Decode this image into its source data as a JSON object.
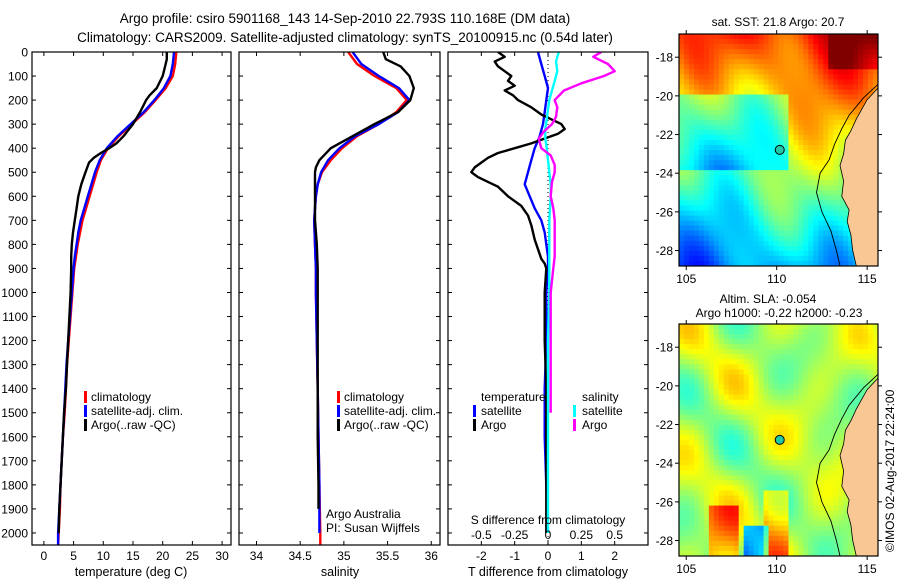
{
  "title": {
    "line1": "Argo profile: csiro 5901168_143 14-Sep-2010 22.793S 110.168E (DM data)",
    "line2": "Climatology: CARS2009. Satellite-adjusted climatology: synTS_20100915.nc (0.54d later)"
  },
  "colors": {
    "climatology": "#ff0000",
    "satellite": "#0000ff",
    "argo": "#000000",
    "sal_satellite": "#00ffff",
    "sal_argo": "#ff00ff",
    "land": "#f9c794"
  },
  "depth_axis": {
    "ticks": [
      0,
      100,
      200,
      300,
      400,
      500,
      600,
      700,
      800,
      900,
      1000,
      1100,
      1200,
      1300,
      1400,
      1500,
      1600,
      1700,
      1800,
      1900,
      2000
    ],
    "range": [
      0,
      2050
    ]
  },
  "chart_data": [
    {
      "type": "line",
      "id": "temperature",
      "xlabel": "temperature (deg C)",
      "ylabel": "",
      "xlim": [
        -2,
        31.5
      ],
      "ylim": [
        2050,
        0
      ],
      "xticks": [
        0,
        5,
        10,
        15,
        20,
        25,
        30
      ],
      "legend": [
        "climatology",
        "satellite-adj. clim.",
        "Argo(..raw -QC)"
      ],
      "legend_position": "lower-middle",
      "series": [
        {
          "name": "climatology",
          "color_key": "climatology",
          "depth": [
            0,
            50,
            100,
            150,
            200,
            250,
            300,
            350,
            400,
            450,
            500,
            550,
            600,
            650,
            700,
            750,
            800,
            850,
            900,
            1000,
            1100,
            1200,
            1300,
            1400,
            1500,
            1600,
            1700,
            1800,
            1900,
            2000,
            2050
          ],
          "values": [
            22.3,
            22.1,
            21.7,
            20.5,
            18.8,
            17.0,
            14.8,
            12.6,
            10.8,
            9.6,
            8.9,
            8.3,
            7.7,
            7.1,
            6.5,
            6.1,
            5.7,
            5.4,
            5.1,
            4.8,
            4.5,
            4.2,
            3.9,
            3.7,
            3.5,
            3.2,
            3.0,
            2.8,
            2.7,
            2.5,
            2.4
          ]
        },
        {
          "name": "satellite-adj. clim.",
          "color_key": "satellite",
          "depth": [
            0,
            50,
            100,
            150,
            200,
            250,
            300,
            350,
            400,
            450,
            500,
            550,
            600,
            650,
            700,
            750,
            800,
            850,
            900,
            1000,
            1100,
            1200,
            1300,
            1400,
            1500,
            1600,
            1700,
            1800,
            1900,
            2000,
            2050
          ],
          "values": [
            21.9,
            21.7,
            21.3,
            20.2,
            18.6,
            16.8,
            14.6,
            12.4,
            10.6,
            9.4,
            8.6,
            8.0,
            7.4,
            6.8,
            6.2,
            5.8,
            5.5,
            5.2,
            5.0,
            4.7,
            4.4,
            4.1,
            3.8,
            3.6,
            3.4,
            3.2,
            3.0,
            2.8,
            2.6,
            2.4,
            2.4
          ]
        },
        {
          "name": "Argo(..raw -QC)",
          "color_key": "argo",
          "depth": [
            0,
            30,
            60,
            100,
            150,
            180,
            200,
            250,
            300,
            350,
            380,
            400,
            420,
            440,
            460,
            500,
            550,
            600,
            650,
            700,
            750,
            800,
            850,
            900,
            1000,
            1100,
            1200,
            1300,
            1400,
            1500,
            1600,
            1700,
            1800,
            1900,
            2000
          ],
          "values": [
            20.7,
            20.7,
            20.4,
            20.0,
            19.0,
            17.8,
            17.2,
            16.2,
            15.0,
            13.4,
            12.2,
            11.0,
            9.6,
            8.4,
            7.6,
            7.0,
            6.3,
            5.8,
            5.5,
            5.2,
            4.9,
            4.7,
            4.6,
            4.6,
            4.5,
            4.3,
            4.1,
            3.9,
            3.7,
            3.4,
            3.2,
            3.0,
            2.8,
            2.6,
            2.5
          ]
        }
      ]
    },
    {
      "type": "line",
      "id": "salinity",
      "xlabel": "salinity",
      "ylabel": "",
      "xlim": [
        33.8,
        36.1
      ],
      "ylim": [
        2050,
        0
      ],
      "xticks": [
        34,
        34.5,
        35,
        35.5,
        36
      ],
      "legend": [
        "climatology",
        "satellite-adj. clim.",
        "Argo(..raw -QC)"
      ],
      "legend_position": "lower-middle",
      "annotation": [
        "Argo Australia",
        "PI: Susan Wijffels"
      ],
      "series": [
        {
          "name": "climatology",
          "color_key": "climatology",
          "depth": [
            0,
            50,
            100,
            150,
            200,
            250,
            300,
            350,
            400,
            450,
            500,
            550,
            600,
            650,
            700,
            800,
            900,
            1000,
            1200,
            1400,
            1600,
            1800,
            2000,
            2050
          ],
          "values": [
            35.05,
            35.15,
            35.35,
            35.6,
            35.72,
            35.6,
            35.4,
            35.15,
            34.98,
            34.85,
            34.75,
            34.7,
            34.68,
            34.67,
            34.66,
            34.67,
            34.68,
            34.68,
            34.69,
            34.7,
            34.71,
            34.72,
            34.73,
            34.73
          ]
        },
        {
          "name": "satellite-adj. clim.",
          "color_key": "satellite",
          "depth": [
            0,
            50,
            100,
            150,
            200,
            250,
            300,
            350,
            400,
            450,
            500,
            550,
            600,
            650,
            700,
            800,
            900,
            1000,
            1200,
            1400,
            1600,
            1800,
            2000
          ],
          "values": [
            35.1,
            35.2,
            35.4,
            35.63,
            35.75,
            35.62,
            35.4,
            35.13,
            34.95,
            34.82,
            34.74,
            34.7,
            34.68,
            34.67,
            34.66,
            34.67,
            34.68,
            34.68,
            34.69,
            34.7,
            34.71,
            34.72,
            34.72
          ]
        },
        {
          "name": "Argo(..raw -QC)",
          "color_key": "argo",
          "depth": [
            0,
            30,
            60,
            100,
            150,
            200,
            250,
            300,
            350,
            400,
            450,
            480,
            500,
            550,
            600,
            650,
            700,
            800,
            900,
            1000,
            1200,
            1400,
            1600,
            1800,
            1900
          ],
          "values": [
            35.45,
            35.48,
            35.65,
            35.75,
            35.8,
            35.76,
            35.62,
            35.35,
            35.1,
            34.85,
            34.72,
            34.68,
            34.67,
            34.67,
            34.67,
            34.67,
            34.67,
            34.69,
            34.7,
            34.7,
            34.7,
            34.7,
            34.7,
            34.71,
            34.71
          ]
        }
      ]
    },
    {
      "type": "line",
      "id": "difference",
      "xlabel": "T difference from climatology",
      "x2label": "S difference from climatology",
      "xlim": [
        -3,
        3
      ],
      "x2lim": [
        -0.75,
        0.75
      ],
      "ylim": [
        2050,
        0
      ],
      "xticks": [
        -2,
        -1,
        0,
        1,
        2
      ],
      "x2ticks": [
        "-0.5",
        "-0.25",
        "0",
        "0.25",
        "0.5"
      ],
      "x2tick_values": [
        -0.5,
        -0.25,
        0,
        0.25,
        0.5
      ],
      "legend_temperature_title": "temperature",
      "legend_salinity_title": "salinity",
      "legend": [
        "satellite",
        "Argo",
        "satellite",
        "Argo"
      ],
      "legend_position": "lower-middle",
      "series": [
        {
          "name": "T satellite",
          "color_key": "satellite",
          "axis": "T",
          "depth": [
            0,
            50,
            100,
            150,
            200,
            250,
            300,
            350,
            400,
            450,
            500,
            550,
            600,
            650,
            700,
            750,
            800,
            850,
            900,
            1000,
            1200,
            1400,
            1600,
            1800,
            2000
          ],
          "values": [
            -0.3,
            -0.2,
            -0.1,
            0,
            -0.05,
            -0.1,
            -0.15,
            -0.25,
            -0.4,
            -0.5,
            -0.6,
            -0.7,
            -0.55,
            -0.4,
            -0.2,
            -0.1,
            -0.05,
            0,
            0,
            -0.05,
            -0.05,
            -0.1,
            -0.1,
            -0.05,
            0
          ]
        },
        {
          "name": "T Argo",
          "color_key": "argo",
          "axis": "T",
          "depth": [
            0,
            20,
            40,
            60,
            80,
            100,
            120,
            140,
            160,
            180,
            200,
            230,
            260,
            280,
            300,
            320,
            340,
            380,
            400,
            420,
            440,
            460,
            480,
            500,
            520,
            540,
            560,
            600,
            640,
            680,
            720,
            780,
            820,
            860,
            880,
            900,
            1000,
            1200,
            1400,
            1600,
            1800,
            2000
          ],
          "values": [
            -1.5,
            -1.3,
            -1.6,
            -1.5,
            -1.3,
            -1.1,
            -1.2,
            -1.0,
            -1.3,
            -1.05,
            -0.9,
            -0.5,
            -0.2,
            0.1,
            0.4,
            0.5,
            0.3,
            -0.5,
            -1.0,
            -1.5,
            -1.8,
            -2.0,
            -2.2,
            -2.3,
            -2.1,
            -1.8,
            -1.5,
            -1.2,
            -0.8,
            -0.6,
            -0.5,
            -0.4,
            -0.3,
            -0.2,
            -0.1,
            -0.05,
            -0.1,
            -0.1,
            -0.05,
            -0.05,
            -0.05,
            -0.05
          ]
        },
        {
          "name": "S satellite",
          "color_key": "sal_satellite",
          "axis": "S",
          "depth": [
            0,
            40,
            80,
            120,
            160,
            200,
            240,
            280,
            320,
            360,
            400,
            450,
            500,
            550,
            600,
            700,
            800,
            900,
            1000,
            1200,
            1400,
            1600,
            1800,
            2000
          ],
          "values": [
            0.08,
            0.06,
            0.07,
            0.05,
            0.03,
            0.01,
            0,
            -0.01,
            -0.02,
            -0.02,
            -0.01,
            0,
            0.01,
            0.02,
            0.02,
            0.01,
            0.01,
            0.01,
            0.01,
            0,
            0,
            0,
            0,
            0
          ]
        },
        {
          "name": "S Argo",
          "color_key": "sal_argo",
          "axis": "S",
          "depth": [
            0,
            20,
            50,
            80,
            100,
            130,
            160,
            200,
            230,
            270,
            300,
            330,
            360,
            400,
            430,
            470,
            500,
            540,
            600,
            650,
            700,
            750,
            800,
            850,
            900,
            950,
            1000,
            1100,
            1200,
            1300,
            1400,
            1500
          ],
          "values": [
            0.4,
            0.34,
            0.45,
            0.5,
            0.42,
            0.25,
            0.12,
            0.05,
            0.07,
            0.06,
            0.03,
            -0.03,
            -0.07,
            -0.05,
            0.02,
            0.05,
            0.05,
            0.03,
            0.02,
            0.04,
            0.05,
            0.05,
            0.05,
            0.05,
            0.04,
            0.03,
            0.02,
            0.02,
            0.02,
            0.02,
            0.02,
            0.02
          ]
        }
      ]
    },
    {
      "type": "heatmap",
      "id": "sst-map",
      "title": "sat. SST: 21.8 Argo: 20.7",
      "xlim": [
        104.6,
        115.6
      ],
      "ylim": [
        -28.8,
        -16.8
      ],
      "xticks": [
        105,
        110,
        115
      ],
      "yticks": [
        -18,
        -20,
        -22,
        -24,
        -26,
        -28
      ],
      "argo_position": {
        "lon": 110.168,
        "lat": -22.793
      },
      "colormap": "jet",
      "value_range": [
        20.5,
        23.5
      ]
    },
    {
      "type": "heatmap",
      "id": "sla-map",
      "title": "Altim. SLA: -0.054",
      "subtitle": "Argo h1000: -0.22 h2000: -0.23",
      "xlim": [
        104.6,
        115.6
      ],
      "ylim": [
        -28.8,
        -16.8
      ],
      "xticks": [
        105,
        110,
        115
      ],
      "yticks": [
        -18,
        -20,
        -22,
        -24,
        -26,
        -28
      ],
      "argo_position": {
        "lon": 110.168,
        "lat": -22.793
      },
      "colormap": "jet"
    }
  ],
  "credit": "©IMOS 02-Aug-2017 22:24:00"
}
